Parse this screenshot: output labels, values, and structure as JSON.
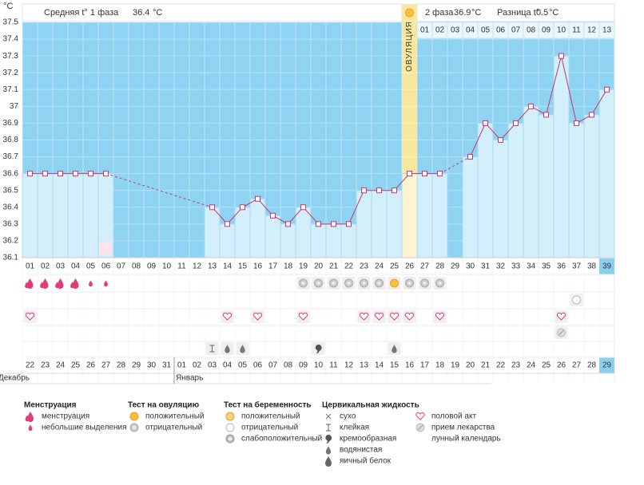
{
  "header": {
    "unit": "°C",
    "phase1_label": "Средняя t° 1 фаза",
    "phase1_value": 36.4,
    "phase2_label": "2 фаза",
    "phase2_value": 36.9,
    "diff_label": "Разница t°",
    "diff_value": 0.5
  },
  "chart_data": {
    "type": "line",
    "categories": [
      "01",
      "02",
      "03",
      "04",
      "05",
      "06",
      "07",
      "08",
      "09",
      "10",
      "11",
      "12",
      "13",
      "14",
      "15",
      "16",
      "17",
      "18",
      "19",
      "20",
      "21",
      "22",
      "23",
      "24",
      "25",
      "26",
      "27",
      "28",
      "29",
      "30",
      "31",
      "32",
      "33",
      "34",
      "35",
      "36",
      "37",
      "38",
      "39"
    ],
    "series": [
      {
        "color": "#c8346e",
        "values": [
          36.6,
          36.6,
          36.6,
          36.6,
          36.6,
          36.6,
          null,
          null,
          null,
          null,
          null,
          null,
          36.4,
          36.3,
          36.4,
          36.45,
          36.35,
          36.3,
          36.4,
          36.3,
          36.3,
          36.3,
          36.5,
          36.5,
          36.5,
          36.6,
          36.6,
          36.6,
          null,
          36.7,
          36.9,
          36.8,
          36.9,
          37.0,
          36.95,
          37.3,
          36.9,
          36.95,
          37.1
        ]
      }
    ],
    "ylim": [
      36.1,
      37.5
    ],
    "yticks": [
      36.1,
      36.2,
      36.3,
      36.4,
      36.5,
      36.6,
      36.7,
      36.8,
      36.9,
      37,
      37.1,
      37.2,
      37.3,
      37.4,
      37.5
    ],
    "grid": true
  },
  "ovulation": {
    "label": "ОВУЛЯЦИЯ",
    "day": 26
  },
  "post_ovulation_days": [
    "01",
    "02",
    "03",
    "04",
    "05",
    "06",
    "07",
    "08",
    "09",
    "10",
    "11",
    "12",
    "13"
  ],
  "today": 39,
  "dates": [
    {
      "label": "22",
      "weekend": false
    },
    {
      "label": "23",
      "weekend": false
    },
    {
      "label": "24",
      "weekend": false
    },
    {
      "label": "25",
      "weekend": false
    },
    {
      "label": "26",
      "weekend": false
    },
    {
      "label": "27",
      "weekend": false
    },
    {
      "label": "28",
      "weekend": true
    },
    {
      "label": "29",
      "weekend": true
    },
    {
      "label": "30",
      "weekend": false
    },
    {
      "label": "31",
      "weekend": false
    },
    {
      "label": "01",
      "weekend": false
    },
    {
      "label": "02",
      "weekend": false
    },
    {
      "label": "03",
      "weekend": false
    },
    {
      "label": "04",
      "weekend": true
    },
    {
      "label": "05",
      "weekend": true
    },
    {
      "label": "06",
      "weekend": false
    },
    {
      "label": "07",
      "weekend": false
    },
    {
      "label": "08",
      "weekend": false
    },
    {
      "label": "09",
      "weekend": false
    },
    {
      "label": "10",
      "weekend": false
    },
    {
      "label": "11",
      "weekend": true
    },
    {
      "label": "12",
      "weekend": true
    },
    {
      "label": "13",
      "weekend": false
    },
    {
      "label": "14",
      "weekend": false
    },
    {
      "label": "15",
      "weekend": false
    },
    {
      "label": "16",
      "weekend": false
    },
    {
      "label": "17",
      "weekend": false
    },
    {
      "label": "18",
      "weekend": true
    },
    {
      "label": "19",
      "weekend": true
    },
    {
      "label": "20",
      "weekend": false
    },
    {
      "label": "21",
      "weekend": false
    },
    {
      "label": "22",
      "weekend": false
    },
    {
      "label": "23",
      "weekend": false
    },
    {
      "label": "24",
      "weekend": false
    },
    {
      "label": "25",
      "weekend": true
    },
    {
      "label": "26",
      "weekend": true
    },
    {
      "label": "27",
      "weekend": false
    },
    {
      "label": "28",
      "weekend": false
    },
    {
      "label": "29",
      "weekend": false
    }
  ],
  "months": [
    {
      "label": "Декабрь",
      "start": 1
    },
    {
      "label": "Январь",
      "start": 11
    }
  ],
  "legend": [
    {
      "title": "Менструация",
      "items": [
        {
          "label": "менструация",
          "days": [
            1,
            2,
            3,
            4
          ]
        },
        {
          "label": "небольшие выделения",
          "days": [
            5,
            6
          ]
        }
      ]
    },
    {
      "title": "Тест на овуляцию",
      "items": [
        {
          "label": "положительный",
          "days": [
            25
          ]
        },
        {
          "label": "отрицательный",
          "days": [
            19,
            20,
            21,
            22,
            23,
            24,
            26,
            27,
            28
          ]
        }
      ]
    },
    {
      "title": "Тест на беременность",
      "items": [
        {
          "label": "положительный",
          "days": []
        },
        {
          "label": "отрицательный",
          "days": [
            37
          ]
        },
        {
          "label": "слабоположительный",
          "days": []
        }
      ]
    },
    {
      "title": "Цервикальная жидкость",
      "items": [
        {
          "label": "сухо",
          "days": []
        },
        {
          "label": "клейкая",
          "days": [
            13
          ]
        },
        {
          "label": "кремообразная",
          "days": [
            20
          ]
        },
        {
          "label": "водянистая",
          "days": [
            14,
            15,
            25
          ]
        },
        {
          "label": "яичный белок",
          "days": []
        }
      ]
    },
    {
      "items": [
        {
          "label": "половой акт",
          "days": [
            1,
            14,
            16,
            19,
            23,
            24,
            25,
            26,
            28,
            36
          ]
        },
        {
          "label": "прием лекарства",
          "days": [
            36
          ]
        },
        {
          "label": "лунный календарь",
          "days": [
            6
          ]
        }
      ]
    }
  ]
}
